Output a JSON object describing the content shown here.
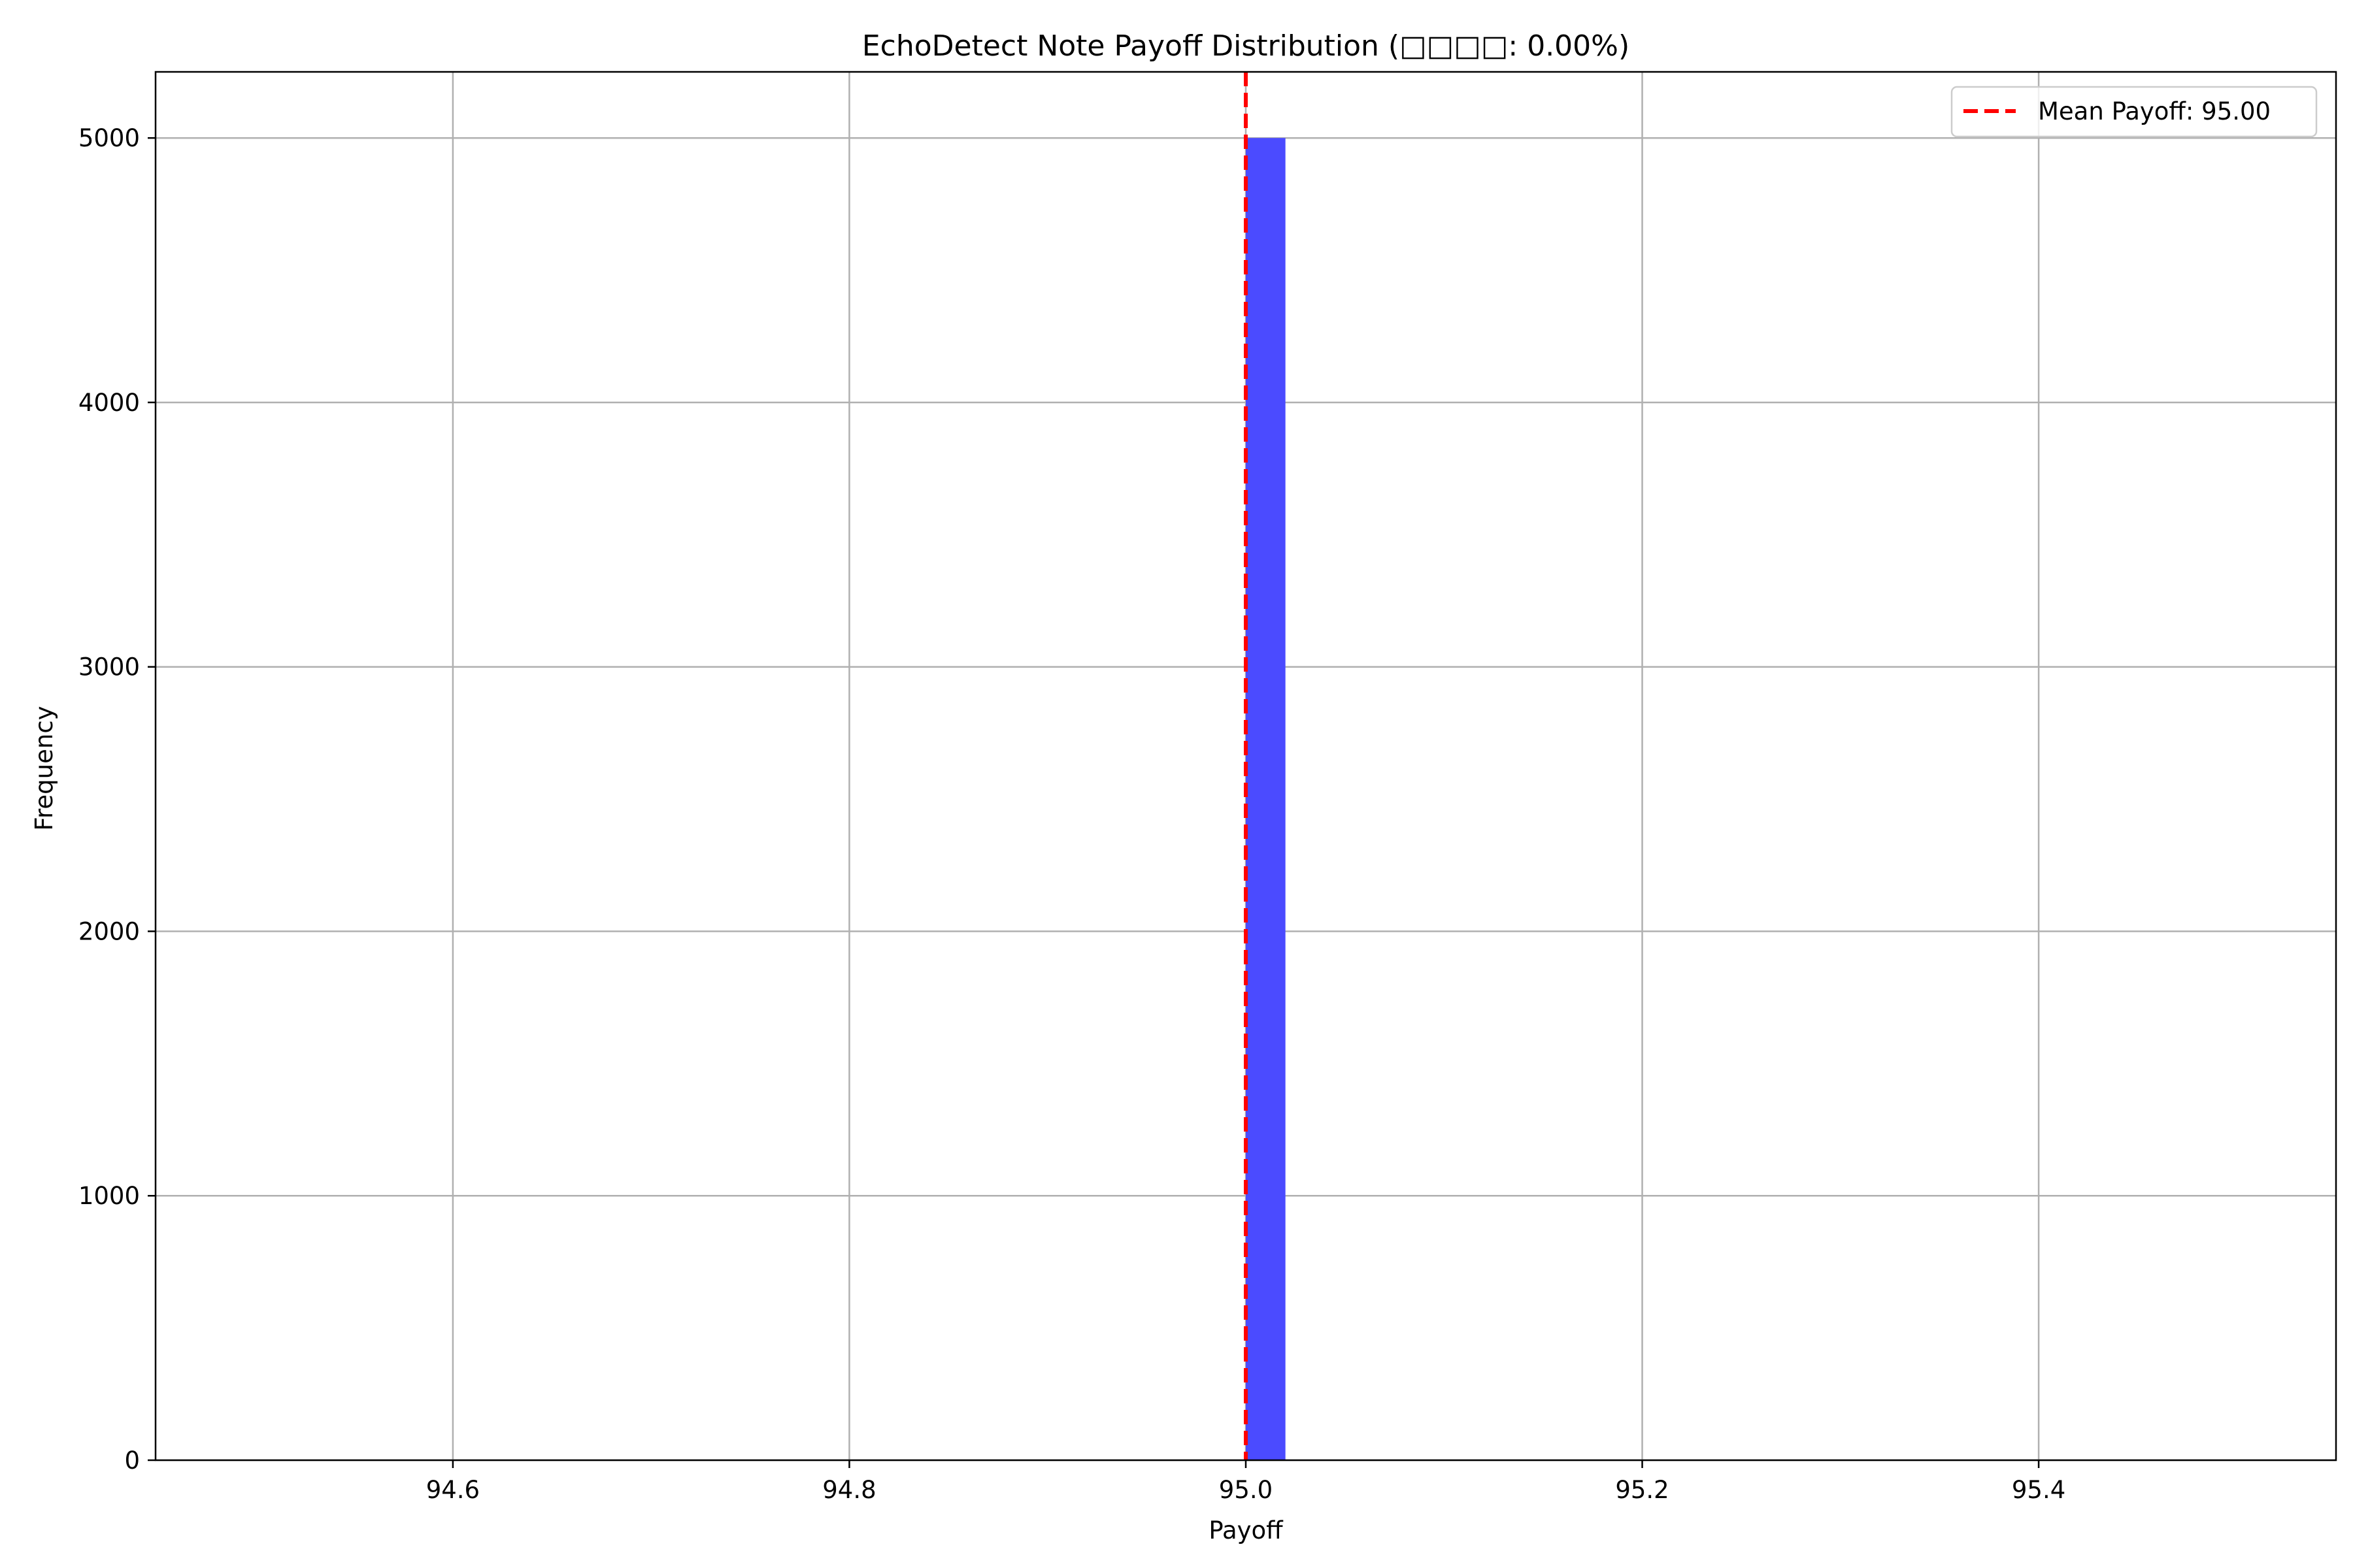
{
  "chart_data": {
    "type": "bar",
    "title": "EchoDetect Note Payoff Distribution (□□□□: 0.00%)",
    "xlabel": "Payoff",
    "ylabel": "Frequency",
    "xlim": [
      94.45,
      95.55
    ],
    "ylim": [
      0,
      5250
    ],
    "x_ticks": [
      94.6,
      94.8,
      95.0,
      95.2,
      95.4
    ],
    "x_tick_labels": [
      "94.6",
      "94.8",
      "95.0",
      "95.2",
      "95.4"
    ],
    "y_ticks": [
      0,
      1000,
      2000,
      3000,
      4000,
      5000
    ],
    "y_tick_labels": [
      "0",
      "1000",
      "2000",
      "3000",
      "4000",
      "5000"
    ],
    "grid": true,
    "bins": [
      {
        "x0": 95.0,
        "x1": 95.02,
        "count": 5000
      }
    ],
    "bar_color": "#4b4bff",
    "mean_line": {
      "x": 95.0,
      "label": "Mean Payoff: 95.00",
      "color": "#ff0000",
      "style": "dashed"
    },
    "legend": {
      "position": "top-right",
      "entries": [
        "Mean Payoff: 95.00"
      ]
    }
  }
}
